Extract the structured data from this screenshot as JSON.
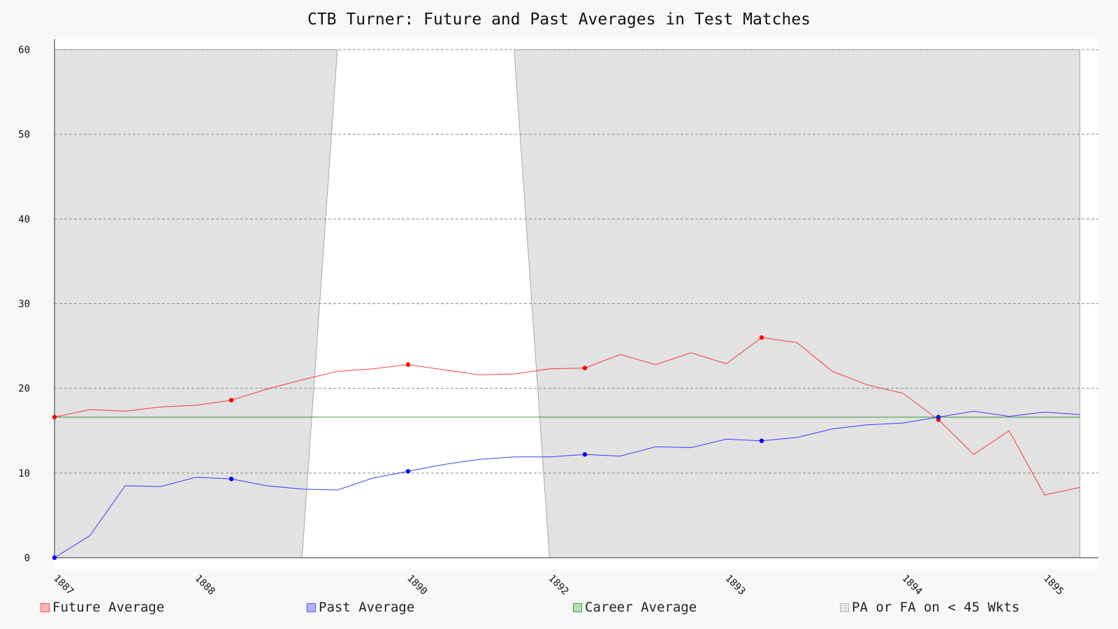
{
  "chart_data": {
    "type": "line",
    "title": "CTB Turner: Future and Past Averages in Test Matches",
    "xlabel": "",
    "ylabel": "",
    "ylim": [
      0,
      60
    ],
    "yticks": [
      0,
      10,
      20,
      30,
      40,
      50,
      60
    ],
    "x_tick_labels": [
      "1887",
      "1888",
      "1890",
      "1892",
      "1893",
      "1894",
      "1895"
    ],
    "x_tick_match_index": [
      0,
      4,
      10,
      14,
      19,
      24,
      28
    ],
    "grid": true,
    "legend_position": "bottom",
    "series": [
      {
        "name": "Future Average",
        "color": "#ff0000",
        "marked_every": 5,
        "values": [
          16.6,
          17.5,
          17.3,
          17.8,
          18.0,
          18.6,
          19.9,
          21.0,
          22.0,
          22.3,
          22.8,
          22.2,
          21.6,
          21.7,
          22.3,
          22.4,
          24.0,
          22.8,
          24.2,
          22.9,
          26.0,
          25.4,
          22.0,
          20.4,
          19.4,
          16.3,
          12.2,
          15.0,
          7.4,
          8.3
        ]
      },
      {
        "name": "Past Average",
        "color": "#0000ff",
        "marked_every": 5,
        "values": [
          0.0,
          2.6,
          8.5,
          8.4,
          9.5,
          9.3,
          8.5,
          8.1,
          8.0,
          9.4,
          10.2,
          11.0,
          11.6,
          11.9,
          11.9,
          12.2,
          12.0,
          13.1,
          13.0,
          14.0,
          13.8,
          14.2,
          15.2,
          15.7,
          15.9,
          16.6,
          17.3,
          16.7,
          17.2,
          16.9
        ]
      },
      {
        "name": "Career Average",
        "color": "#008000",
        "constant": 16.6
      }
    ],
    "shaded_region": {
      "name": "PA or FA on < 45 Wkts",
      "color": "#e2e2e2",
      "unshaded_span_bottom": [
        7,
        14
      ],
      "unshaded_span_top": [
        8,
        13
      ]
    },
    "legend": [
      {
        "label": "Future Average",
        "fill": "#ffb3b3",
        "border": "#ff5555"
      },
      {
        "label": "Past Average",
        "fill": "#b3b3ff",
        "border": "#5555ff"
      },
      {
        "label": "Career Average",
        "fill": "#b3e0b3",
        "border": "#44a044"
      },
      {
        "label": "PA or FA on < 45 Wkts",
        "fill": "#e2e2e2",
        "border": "#bbbbbb"
      }
    ]
  }
}
